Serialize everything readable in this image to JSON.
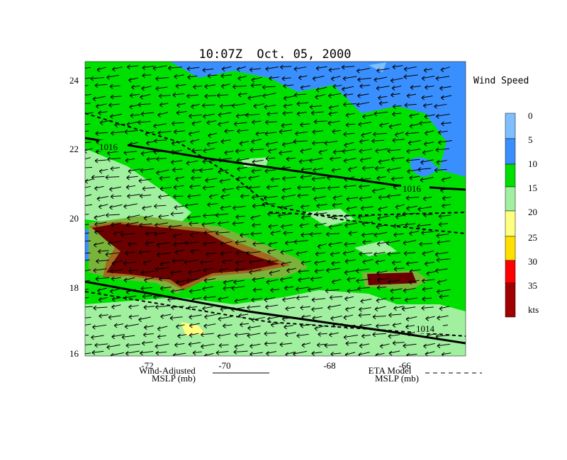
{
  "title": "10:07Z  Oct. 05, 2000",
  "legend_title": "Wind Speed",
  "colorbar": {
    "labels": [
      0,
      5,
      10,
      15,
      20,
      25,
      30,
      35
    ],
    "unit": "kts"
  },
  "axes": {
    "lat_labels": [
      24,
      22,
      20,
      18,
      16
    ],
    "lon_labels": [
      -72,
      -70,
      -68,
      -66
    ]
  },
  "contour_labels": [
    1016,
    1016,
    1014
  ],
  "legend": {
    "wind_adjusted": [
      "Wind-Adjusted",
      "MSLP (mb)"
    ],
    "eta": [
      "ETA Model",
      "MSLP (mb)"
    ]
  }
}
